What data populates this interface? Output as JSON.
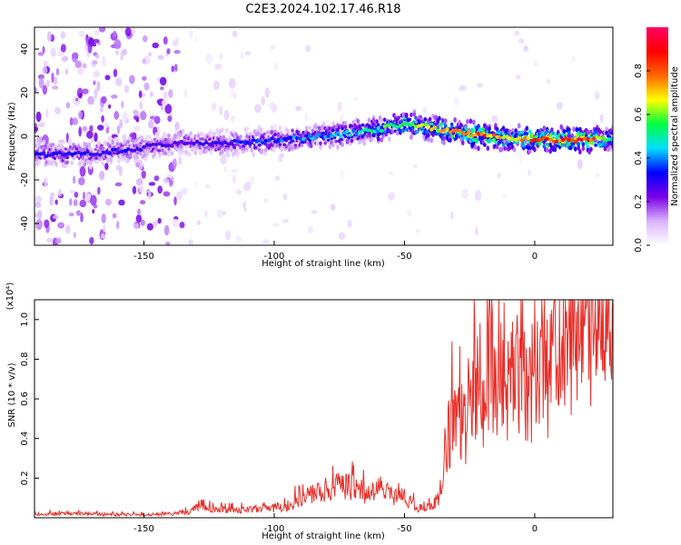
{
  "title": "C2E3.2024.102.17.46.R18",
  "colors": {
    "snr_line": "#e8302a",
    "axis": "#000000"
  },
  "colorbar": {
    "label": "Normalized spectral amplitude",
    "ticks": [
      "0.0",
      "0.2",
      "0.4",
      "0.6",
      "0.8"
    ],
    "range": [
      0.0,
      1.0
    ],
    "colormap": [
      "#ffffff",
      "#d9b3ff",
      "#7a00e6",
      "#0000ff",
      "#00e0ff",
      "#00ff40",
      "#ffff00",
      "#ff6600",
      "#ff0000",
      "#ff0066"
    ]
  },
  "chart_data": [
    {
      "type": "heatmap",
      "title": "C2E3.2024.102.17.46.R18",
      "xlabel": "Height of straight line (km)",
      "ylabel": "Frequency (Hz)",
      "xlim": [
        -192,
        30
      ],
      "ylim": [
        -50,
        50
      ],
      "xticks": [
        -150,
        -100,
        -50,
        0
      ],
      "yticks": [
        40,
        20,
        0,
        -20,
        -40
      ],
      "xtick_labels": [
        "-150",
        "-100",
        "-50",
        "0"
      ],
      "ytick_labels": [
        "40",
        "20",
        "0",
        "-20",
        "-40"
      ],
      "ridge": {
        "x": [
          -192,
          -170,
          -135,
          -120,
          -100,
          -80,
          -60,
          -50,
          -40,
          -30,
          -20,
          -10,
          0,
          10,
          20,
          30
        ],
        "y": [
          -8,
          -8,
          -3,
          -3,
          -2,
          0,
          3,
          6,
          4,
          2,
          0,
          -1,
          -1.5,
          -1.5,
          -1.5,
          -1.5
        ],
        "amplitude": [
          0.3,
          0.3,
          0.25,
          0.3,
          0.35,
          0.4,
          0.5,
          0.6,
          0.65,
          0.75,
          0.85,
          0.6,
          0.85,
          0.85,
          0.85,
          0.5
        ]
      }
    },
    {
      "type": "line",
      "xlabel": "Height of straight line (km)",
      "ylabel": "SNR (10 * v/v)",
      "scale_label": "(x10⁴)",
      "xlim": [
        -192,
        30
      ],
      "ylim": [
        0,
        1.1
      ],
      "xticks": [
        -150,
        -100,
        -50,
        0
      ],
      "yticks": [
        0.2,
        0.4,
        0.6,
        0.8,
        1.0
      ],
      "xtick_labels": [
        "-150",
        "-100",
        "-50",
        "0"
      ],
      "ytick_labels": [
        "0.2",
        "0.4",
        "0.6",
        "0.8",
        "1.0"
      ],
      "series": [
        {
          "x": [
            -192,
            -180,
            -170,
            -160,
            -150,
            -140,
            -132,
            -128,
            -125,
            -120,
            -110,
            -100,
            -95,
            -90,
            -85,
            -80,
            -75,
            -70,
            -65,
            -60,
            -55,
            -50,
            -45,
            -40,
            -37,
            -35,
            -32,
            -30,
            -27,
            -25,
            -22,
            -20,
            -17,
            -15,
            -12,
            -10,
            -7,
            -5,
            -2,
            0,
            3,
            5,
            8,
            10,
            13,
            15,
            18,
            20,
            23,
            25,
            28,
            30
          ],
          "y": [
            0.02,
            0.02,
            0.02,
            0.015,
            0.015,
            0.02,
            0.03,
            0.07,
            0.05,
            0.04,
            0.04,
            0.05,
            0.06,
            0.1,
            0.12,
            0.14,
            0.16,
            0.15,
            0.12,
            0.14,
            0.12,
            0.1,
            0.05,
            0.05,
            0.1,
            0.2,
            0.45,
            0.55,
            0.45,
            0.6,
            0.65,
            0.55,
            0.75,
            0.6,
            0.8,
            0.65,
            0.75,
            0.7,
            0.6,
            0.8,
            0.78,
            0.72,
            0.9,
            0.72,
            0.92,
            0.85,
            0.95,
            0.9,
            0.98,
            0.95,
            1.05,
            1.08
          ]
        }
      ]
    }
  ]
}
